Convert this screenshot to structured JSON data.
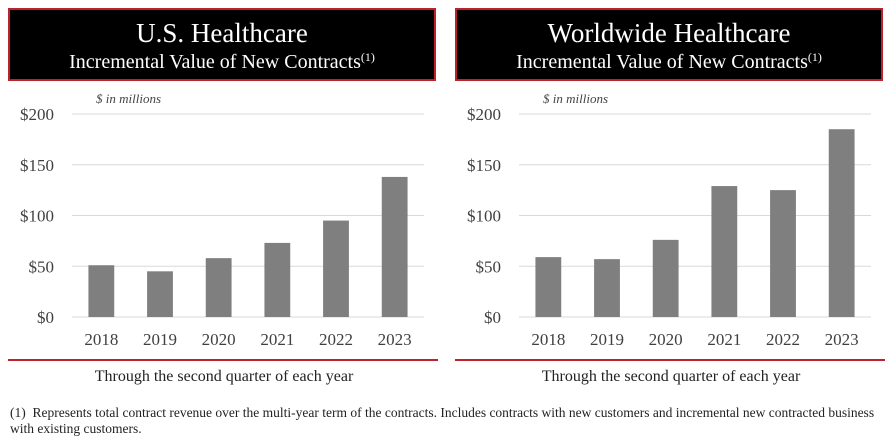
{
  "chart_data": [
    {
      "type": "bar",
      "title": "U.S. Healthcare",
      "subtitle": "Incremental Value of New Contracts",
      "subtitle_note": "(1)",
      "units_label": "$ in millions",
      "categories": [
        "2018",
        "2019",
        "2020",
        "2021",
        "2022",
        "2023"
      ],
      "values": [
        51,
        45,
        58,
        73,
        95,
        138
      ],
      "ylim": [
        0,
        200
      ],
      "yticks": [
        0,
        50,
        100,
        150,
        200
      ],
      "ytick_labels": [
        "$0",
        "$50",
        "$100",
        "$150",
        "$200"
      ],
      "xlabel": "Through the second quarter of each year",
      "ylabel": "",
      "grid": true,
      "bar_color": "#7f7f7f",
      "axis_line_color": "#c0202a"
    },
    {
      "type": "bar",
      "title": "Worldwide Healthcare",
      "subtitle": "Incremental Value of New Contracts",
      "subtitle_note": "(1)",
      "units_label": "$ in millions",
      "categories": [
        "2018",
        "2019",
        "2020",
        "2021",
        "2022",
        "2023"
      ],
      "values": [
        59,
        57,
        76,
        129,
        125,
        185
      ],
      "ylim": [
        0,
        200
      ],
      "yticks": [
        0,
        50,
        100,
        150,
        200
      ],
      "ytick_labels": [
        "$0",
        "$50",
        "$100",
        "$150",
        "$200"
      ],
      "xlabel": "Through the second quarter of each year",
      "ylabel": "",
      "grid": true,
      "bar_color": "#7f7f7f",
      "axis_line_color": "#c0202a"
    }
  ],
  "footnote": {
    "marker": "(1)",
    "text": "Represents total contract revenue over the multi-year term of the contracts.  Includes contracts with new customers and incremental new contracted business with existing customers."
  }
}
